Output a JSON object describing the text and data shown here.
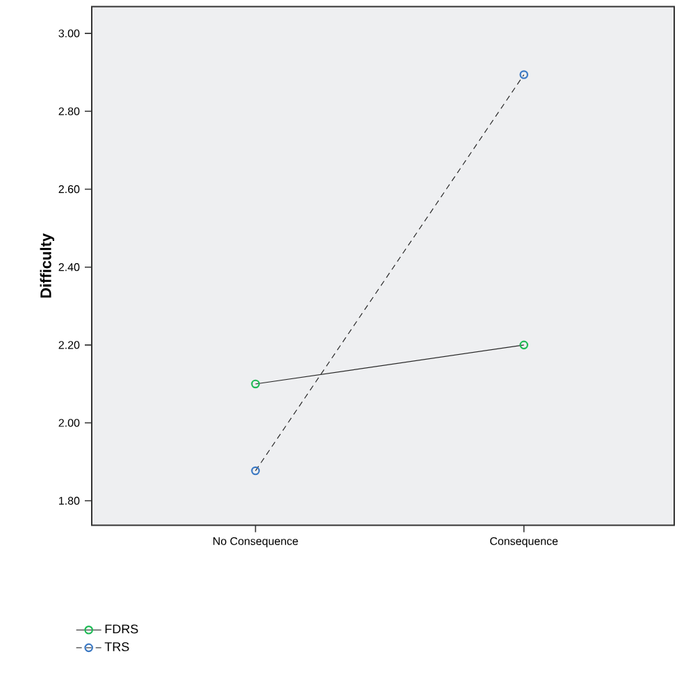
{
  "chart_data": {
    "type": "line",
    "ylabel": "Difficulty",
    "categories": [
      "No Consequence",
      "Consequence"
    ],
    "series": [
      {
        "name": "FDRS",
        "color": "#1db954",
        "values": [
          2.1,
          2.2
        ],
        "line_style": "solid"
      },
      {
        "name": "TRS",
        "color": "#3a78c3",
        "values": [
          1.877,
          2.894
        ],
        "line_style": "dashed"
      }
    ],
    "ylim": [
      1.737,
      3.069
    ],
    "yticks": [
      {
        "value": 1.8,
        "label": "1.80"
      },
      {
        "value": 2.0,
        "label": "2.00"
      },
      {
        "value": 2.2,
        "label": "2.20"
      },
      {
        "value": 2.4,
        "label": "2.40"
      },
      {
        "value": 2.6,
        "label": "2.60"
      },
      {
        "value": 2.8,
        "label": "2.80"
      },
      {
        "value": 3.0,
        "label": "3.00"
      }
    ],
    "grid": false,
    "legend": "bottom left",
    "marker": "circle"
  }
}
